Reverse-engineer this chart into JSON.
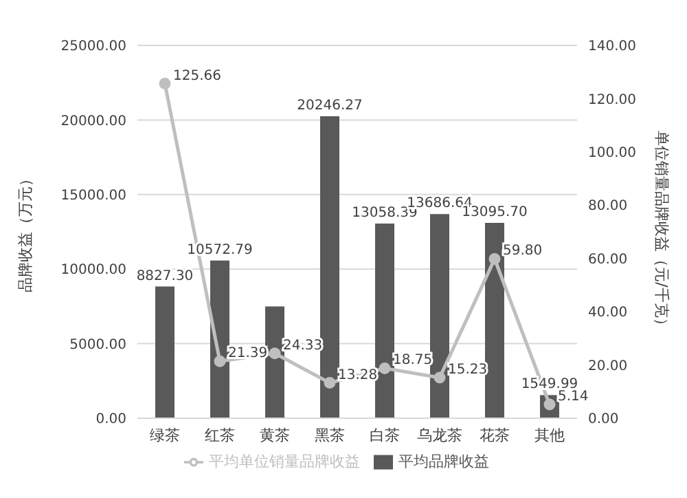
{
  "chart_data": {
    "type": "bar",
    "categories": [
      "绿茶",
      "红茶",
      "黄茶",
      "黑茶",
      "白茶",
      "乌龙茶",
      "花茶",
      "其他"
    ],
    "ylabel": "品牌收益（万元）",
    "y2label": "单位销量品牌收益（元/千克）",
    "series": [
      {
        "name": "平均品牌收益",
        "color": "#595959",
        "values": [
          8827.3,
          10572.79,
          7500,
          20246.27,
          13058.39,
          13686.64,
          13095.7,
          1549.99
        ],
        "value_labels": [
          "8827.30",
          "10572.79",
          null,
          "20246.27",
          "13058.39",
          "13686.64",
          "13095.70",
          "1549.99"
        ]
      },
      {
        "name": "平均单位销量品牌收益",
        "type": "line",
        "axis": "y2",
        "color": "#bfbfbf",
        "marker": "circle",
        "values": [
          125.66,
          21.39,
          24.33,
          13.28,
          18.75,
          15.23,
          59.8,
          5.14
        ],
        "value_labels": [
          "125.66",
          "21.39",
          "24.33",
          "13.28",
          "18.75",
          "15.23",
          "59.80",
          "5.14"
        ]
      }
    ],
    "ylim": [
      0,
      25000
    ],
    "yticks": [
      {
        "value": 0,
        "label": "0.00"
      },
      {
        "value": 5000,
        "label": "5000.00"
      },
      {
        "value": 10000,
        "label": "10000.00"
      },
      {
        "value": 15000,
        "label": "15000.00"
      },
      {
        "value": 20000,
        "label": "20000.00"
      },
      {
        "value": 25000,
        "label": "25000.00"
      }
    ],
    "y2lim": [
      0,
      140
    ],
    "y2ticks": [
      {
        "value": 0,
        "label": "0.00"
      },
      {
        "value": 20,
        "label": "20.00"
      },
      {
        "value": 40,
        "label": "40.00"
      },
      {
        "value": 60,
        "label": "60.00"
      },
      {
        "value": 80,
        "label": "80.00"
      },
      {
        "value": 100,
        "label": "100.00"
      },
      {
        "value": 120,
        "label": "120.00"
      },
      {
        "value": 140,
        "label": "140.00"
      }
    ],
    "grid": "y",
    "legend": "bottom"
  }
}
